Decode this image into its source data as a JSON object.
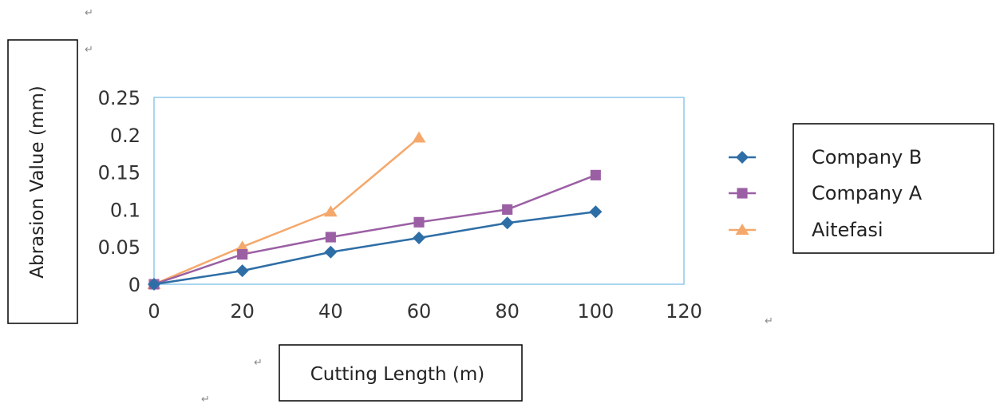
{
  "chart_data": {
    "type": "line",
    "title": "",
    "xlabel": "Cutting Length (m)",
    "ylabel": "Abrasion Value (mm)",
    "xlim": [
      0,
      120
    ],
    "ylim": [
      0,
      0.25
    ],
    "xticks": [
      0,
      20,
      40,
      60,
      80,
      100,
      120
    ],
    "yticks": [
      0,
      0.05,
      0.1,
      0.15,
      0.2,
      0.25
    ],
    "xtick_labels": [
      "0",
      "20",
      "40",
      "60",
      "80",
      "100",
      "120"
    ],
    "ytick_labels": [
      "0",
      "0.05",
      "0.1",
      "0.15",
      "0.2",
      "0.25"
    ],
    "grid": false,
    "legend_position": "right",
    "series": [
      {
        "name": "Company B",
        "marker": "diamond",
        "color": "#2e6ea6",
        "x": [
          0,
          20,
          40,
          60,
          80,
          100
        ],
        "y": [
          0,
          0.018,
          0.043,
          0.062,
          0.082,
          0.097
        ]
      },
      {
        "name": "Company A",
        "marker": "square",
        "color": "#9b5fa4",
        "x": [
          0,
          20,
          40,
          60,
          80,
          100
        ],
        "y": [
          0,
          0.04,
          0.063,
          0.083,
          0.1,
          0.146
        ]
      },
      {
        "name": "Aitefasi",
        "marker": "triangle",
        "color": "#f5a86b",
        "x": [
          0,
          20,
          40,
          60
        ],
        "y": [
          0,
          0.05,
          0.097,
          0.196
        ]
      }
    ]
  },
  "para_mark": "↵"
}
